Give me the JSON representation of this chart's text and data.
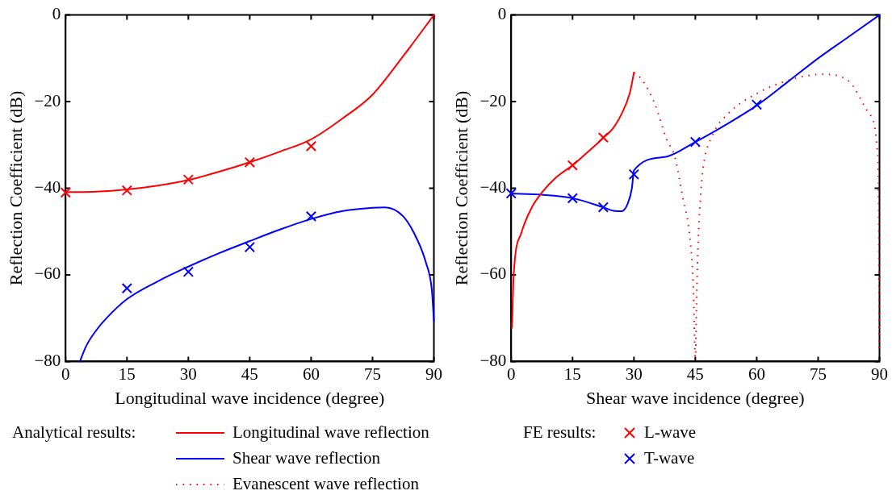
{
  "chart_data": [
    {
      "type": "line",
      "xlabel": "Longitudinal wave incidence (degree)",
      "ylabel": "Reflection Coefficient (dB)",
      "xlim": [
        0,
        90
      ],
      "ylim": [
        -80,
        0
      ],
      "xticks": [
        0,
        15,
        30,
        45,
        60,
        75,
        90
      ],
      "yticks": [
        -80,
        -60,
        -40,
        -20,
        0
      ],
      "series": [
        {
          "type": "line",
          "color": "#ff0000",
          "line_style": "solid",
          "marker": "none",
          "x": [
            0,
            7.5,
            15,
            22.5,
            30,
            37.5,
            45,
            52.5,
            60,
            67.5,
            75,
            82.5,
            90
          ],
          "values": [
            -40.9,
            -40.8,
            -40.3,
            -39.4,
            -38.1,
            -36.2,
            -34,
            -31.5,
            -28.7,
            -24,
            -18.4,
            -9.5,
            0
          ]
        },
        {
          "type": "line",
          "color": "#0000ff",
          "line_style": "solid",
          "marker": "none",
          "x": [
            3.5,
            5,
            7.5,
            10,
            15,
            22.5,
            30,
            37.5,
            45,
            52.5,
            60,
            67.5,
            75,
            78,
            82.5,
            86,
            88,
            89.5,
            90
          ],
          "values": [
            -80,
            -76.5,
            -72.8,
            -70,
            -65.6,
            -61.5,
            -58.1,
            -55,
            -52.2,
            -49.5,
            -47.1,
            -45.3,
            -44.5,
            -44.4,
            -46.5,
            -52,
            -57,
            -63.5,
            -70.6
          ]
        },
        {
          "type": "scatter",
          "color": "#ff0000",
          "marker": "cross",
          "x": [
            0,
            15,
            30,
            45,
            60
          ],
          "values": [
            -41,
            -40.5,
            -38,
            -34,
            -30.3
          ]
        },
        {
          "type": "scatter",
          "color": "#0000ff",
          "marker": "cross",
          "x": [
            15,
            30,
            45,
            60
          ],
          "values": [
            -63.1,
            -59.3,
            -53.6,
            -46.5
          ]
        }
      ]
    },
    {
      "type": "line",
      "xlabel": "Shear wave incidence (degree)",
      "ylabel": "Reflection Coefficient (dB)",
      "xlim": [
        0,
        90
      ],
      "ylim": [
        -80,
        0
      ],
      "xticks": [
        0,
        15,
        30,
        45,
        60,
        75,
        90
      ],
      "yticks": [
        -80,
        -60,
        -40,
        -20,
        0
      ],
      "legend": "bottom",
      "annotations": [
        "Analytical results:",
        "FE results:"
      ],
      "series": [
        {
          "type": "line",
          "name": "Longitudinal wave reflection",
          "color": "#ff0000",
          "line_style": "solid",
          "marker": "none",
          "x": [
            0.2,
            0.6,
            2.5,
            5,
            7.5,
            11,
            15,
            18.5,
            22.5,
            25,
            27,
            29,
            30
          ],
          "values": [
            -72.2,
            -60.3,
            -50.3,
            -44.5,
            -41,
            -37.5,
            -34.7,
            -31.8,
            -28.4,
            -26,
            -22.8,
            -18,
            -13.3
          ]
        },
        {
          "type": "line",
          "name": "Shear wave reflection",
          "color": "#0000ff",
          "line_style": "solid",
          "marker": "none",
          "x": [
            0,
            7.5,
            15,
            22.5,
            25,
            27,
            28.5,
            29.5,
            30,
            37.5,
            45,
            52.5,
            60,
            67.5,
            75,
            82.5,
            90
          ],
          "values": [
            -41.2,
            -41.5,
            -42.3,
            -44.4,
            -45.2,
            -45.3,
            -43.5,
            -40,
            -35.9,
            -32.8,
            -29.3,
            -25.3,
            -20.9,
            -15.5,
            -10,
            -5,
            0
          ]
        },
        {
          "type": "line",
          "name": "Evanescent wave reflection",
          "color": "#ff0000",
          "line_style": "dotted",
          "marker": "none",
          "x": [
            30,
            32,
            35,
            38,
            40,
            42,
            43.5,
            44.5,
            45,
            45.3,
            45.6,
            46.2,
            46.9,
            49.2,
            53,
            60.7,
            69.6,
            76,
            82.4,
            87.5,
            89.5,
            89.8,
            89.9
          ],
          "values": [
            -13.3,
            -15,
            -20.3,
            -28.7,
            -32.8,
            -42.5,
            -50,
            -62.6,
            -79,
            -66.5,
            -55,
            -43,
            -35.3,
            -27.8,
            -22.8,
            -17.8,
            -14.6,
            -13.7,
            -15.2,
            -22.8,
            -31.5,
            -48,
            -78
          ]
        },
        {
          "type": "scatter",
          "name": "L-wave",
          "color": "#ff0000",
          "marker": "cross",
          "x": [
            15,
            22.5
          ],
          "values": [
            -34.7,
            -28.3
          ]
        },
        {
          "type": "scatter",
          "name": "T-wave",
          "color": "#0000ff",
          "marker": "cross",
          "x": [
            0,
            15,
            22.5,
            30,
            45,
            60
          ],
          "values": [
            -41.2,
            -42.3,
            -44.4,
            -36.8,
            -29.3,
            -20.7
          ]
        }
      ]
    }
  ]
}
